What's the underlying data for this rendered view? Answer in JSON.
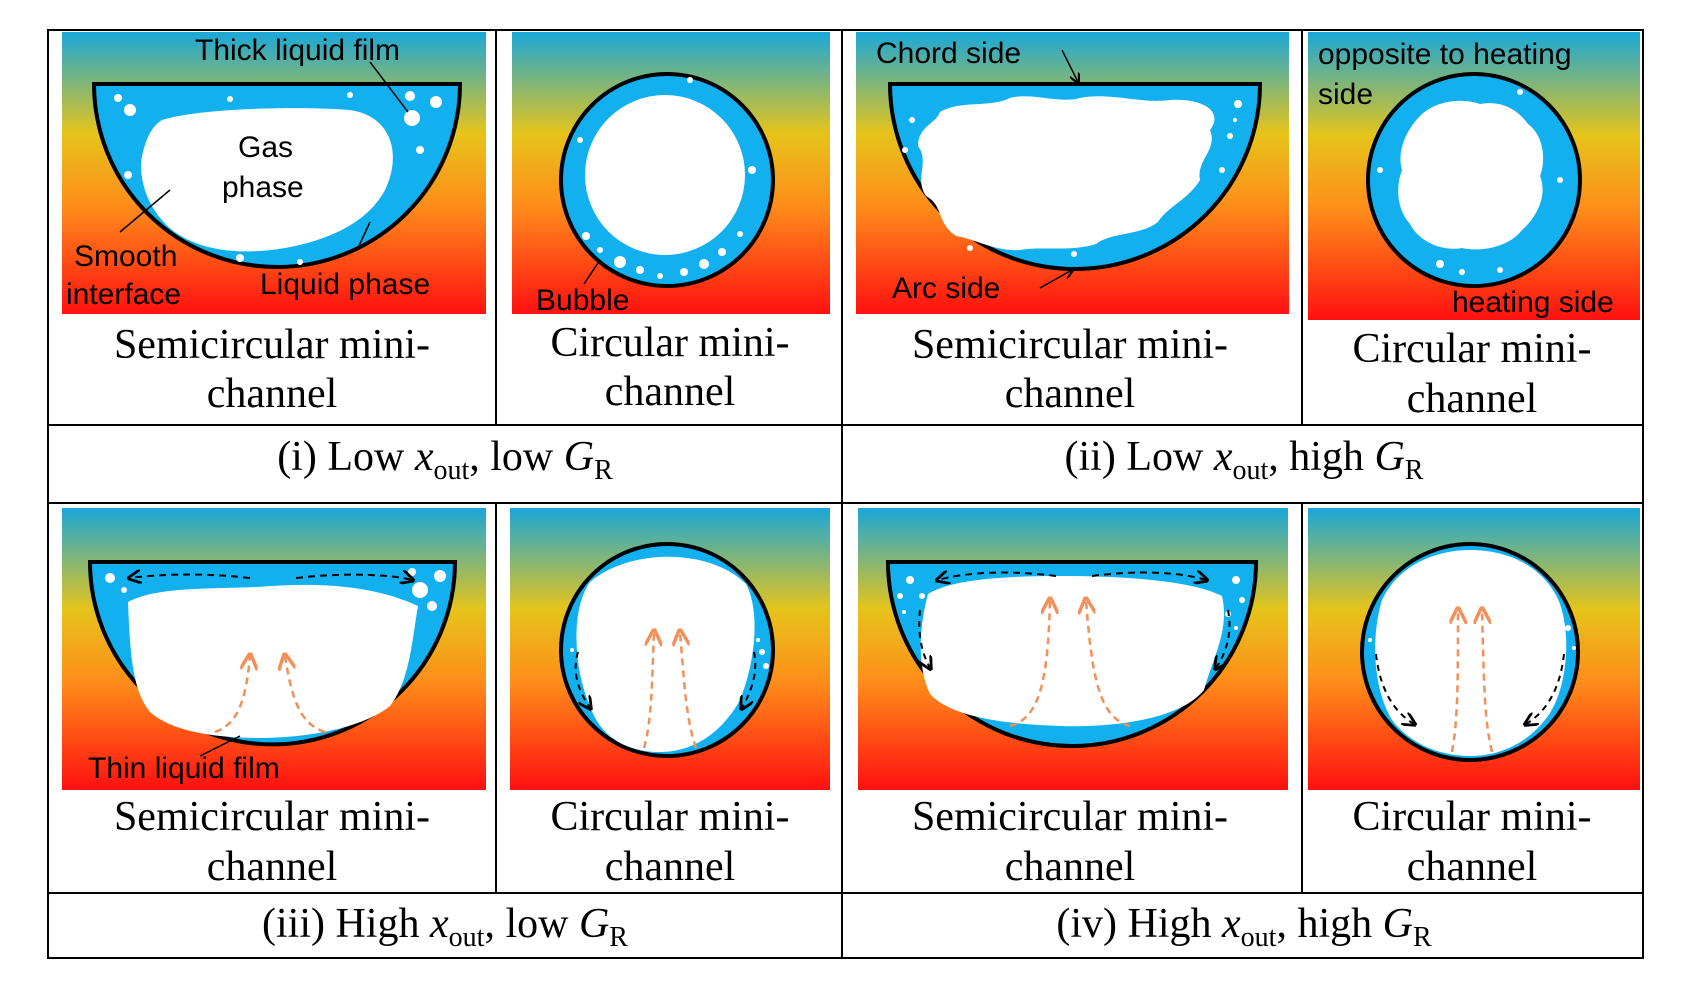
{
  "colors": {
    "gradient_top": "#1aa7d9",
    "gradient_mid": "#e6c41a",
    "gradient_orange": "#ff8c1a",
    "gradient_bottom": "#ff1010",
    "liquid": "#12b0ee",
    "gas": "#ffffff",
    "wall": "#000000",
    "vapor_arrow": "#f0905a",
    "liquid_arrow": "#000000"
  },
  "panels": [
    {
      "id": "i",
      "numeral": "(i) Low ",
      "x_var": "x",
      "x_sub": "out",
      "mid": ", low ",
      "g_var": "G",
      "g_sub": "R",
      "semi_caption": [
        "Semicircular mini-",
        "channel"
      ],
      "circ_caption": [
        "Circular mini-",
        "channel"
      ],
      "semi_labels": [
        "Thick liquid film",
        "Gas",
        "phase",
        "Smooth",
        "interface",
        "Liquid  phase"
      ],
      "circ_labels": [
        "Bubble"
      ]
    },
    {
      "id": "ii",
      "numeral": "(ii) Low ",
      "x_var": "x",
      "x_sub": "out",
      "mid": ", high ",
      "g_var": "G",
      "g_sub": "R",
      "semi_caption": [
        "Semicircular mini-",
        "channel"
      ],
      "circ_caption": [
        "Circular mini-",
        "channel"
      ],
      "semi_labels": [
        "Chord side",
        "Arc side"
      ],
      "circ_labels": [
        "opposite to heating",
        "side",
        "heating side"
      ]
    },
    {
      "id": "iii",
      "numeral": "(iii) High ",
      "x_var": "x",
      "x_sub": "out",
      "mid": ", low ",
      "g_var": "G",
      "g_sub": "R",
      "semi_caption": [
        "Semicircular mini-",
        "channel"
      ],
      "circ_caption": [
        "Circular mini-",
        "channel"
      ],
      "semi_labels": [
        "Thin liquid film"
      ],
      "circ_labels": []
    },
    {
      "id": "iv",
      "numeral": "(iv) High ",
      "x_var": "x",
      "x_sub": "out",
      "mid": ", high ",
      "g_var": "G",
      "g_sub": "R",
      "semi_caption": [
        "Semicircular mini-",
        "channel"
      ],
      "circ_caption": [
        "Circular mini-",
        "channel"
      ],
      "semi_labels": [],
      "circ_labels": []
    }
  ]
}
